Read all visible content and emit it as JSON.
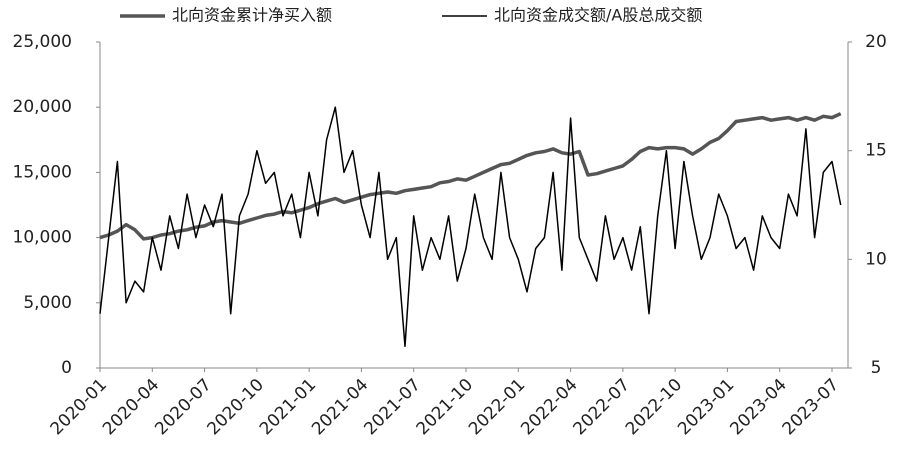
{
  "chart_data": {
    "type": "line",
    "x": [
      "2020-01",
      null,
      null,
      null,
      null,
      null,
      "2020-04",
      null,
      null,
      null,
      null,
      null,
      "2020-07",
      null,
      null,
      null,
      null,
      null,
      "2020-10",
      null,
      null,
      null,
      null,
      null,
      "2021-01",
      null,
      null,
      null,
      null,
      null,
      "2021-04",
      null,
      null,
      null,
      null,
      null,
      "2021-07",
      null,
      null,
      null,
      null,
      null,
      "2021-10",
      null,
      null,
      null,
      null,
      null,
      "2022-01",
      null,
      null,
      null,
      null,
      null,
      "2022-04",
      null,
      null,
      null,
      null,
      null,
      "2022-07",
      null,
      null,
      null,
      null,
      null,
      "2022-10",
      null,
      null,
      null,
      null,
      null,
      "2023-01",
      null,
      null,
      null,
      null,
      null,
      "2023-04",
      null,
      null,
      null,
      null,
      null,
      "2023-07",
      null
    ],
    "series": [
      {
        "name": "北向资金累计净买入额",
        "color": "#555555",
        "axis": "y",
        "values": [
          10000,
          10200,
          10500,
          11000,
          10600,
          9900,
          10000,
          10200,
          10300,
          10500,
          10600,
          10800,
          10900,
          11200,
          11300,
          11200,
          11100,
          11300,
          11500,
          11700,
          11800,
          12000,
          11900,
          12100,
          12300,
          12600,
          12800,
          13000,
          12700,
          12900,
          13100,
          13300,
          13400,
          13500,
          13400,
          13600,
          13700,
          13800,
          13900,
          14200,
          14300,
          14500,
          14400,
          14700,
          15000,
          15300,
          15600,
          15700,
          16000,
          16300,
          16500,
          16600,
          16800,
          16500,
          16400,
          16600,
          14800,
          14900,
          15100,
          15300,
          15500,
          16000,
          16600,
          16900,
          16800,
          16900,
          16900,
          16800,
          16400,
          16800,
          17300,
          17600,
          18200,
          18900,
          19000,
          19100,
          19200,
          19000,
          19100,
          19200,
          19000,
          19200,
          19000,
          19300,
          19200,
          19500
        ]
      },
      {
        "name": "北向资金成交额/A股总成交额",
        "color": "#000000",
        "axis": "y2",
        "values": [
          7.5,
          11,
          14.5,
          8,
          9,
          8.5,
          11,
          9.5,
          12,
          10.5,
          13,
          11,
          12.5,
          11.5,
          13,
          7.5,
          12,
          13,
          15,
          13.5,
          14,
          12,
          13,
          11,
          14,
          12,
          15.5,
          17,
          14,
          15,
          12.5,
          11,
          14,
          10,
          11,
          6,
          12,
          9.5,
          11,
          10,
          12,
          9,
          10.5,
          13,
          11,
          10,
          14,
          11,
          10,
          8.5,
          10.5,
          11,
          14,
          9.5,
          16.5,
          11,
          10,
          9,
          12,
          10,
          11,
          9.5,
          11.5,
          7.5,
          12,
          15,
          10.5,
          14.5,
          12,
          10,
          11,
          13,
          12,
          10.5,
          11,
          9.5,
          12,
          11,
          10.5,
          13,
          12,
          16,
          11,
          14,
          14.5,
          12.5
        ]
      }
    ],
    "ylim": [
      0,
      25000
    ],
    "yticks": [
      0,
      {
        "value": 5000,
        "label": "5,000"
      },
      {
        "value": 10000,
        "label": "10,000"
      },
      {
        "value": 15000,
        "label": "15,000"
      },
      {
        "value": 20000,
        "label": "20,000"
      },
      {
        "value": 25000,
        "label": "25,000"
      }
    ],
    "y2lim": [
      5,
      20
    ],
    "y2ticks": [
      5,
      10,
      15,
      20
    ],
    "grid": false
  }
}
